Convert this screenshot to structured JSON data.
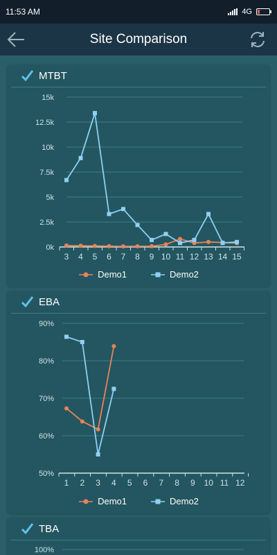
{
  "status": {
    "time": "11:53 AM",
    "network": "4G"
  },
  "appbar": {
    "title": "Site Comparison",
    "back_icon": "arrow-left-icon",
    "refresh_icon": "refresh-icon"
  },
  "colors": {
    "demo1": "#e9835a",
    "demo2": "#8fd0f3",
    "axis": "#cfe3e6",
    "grid": "#3e7f88"
  },
  "legend": {
    "series1": "Demo1",
    "series2": "Demo2"
  },
  "chart_data": [
    {
      "type": "line",
      "title": "MTBT",
      "x": [
        "3",
        "4",
        "5",
        "6",
        "7",
        "8",
        "9",
        "10",
        "11",
        "12",
        "13",
        "14",
        "15"
      ],
      "y_ticks": [
        "0k",
        "2.5k",
        "5k",
        "7.5k",
        "10k",
        "12.5k",
        "15k"
      ],
      "ylim": [
        0,
        15000
      ],
      "series": [
        {
          "name": "Demo1",
          "values": [
            150,
            120,
            100,
            80,
            60,
            70,
            80,
            250,
            800,
            400,
            500,
            450,
            380
          ]
        },
        {
          "name": "Demo2",
          "values": [
            6700,
            8900,
            13400,
            3300,
            3800,
            2200,
            700,
            1300,
            400,
            700,
            3300,
            400,
            500
          ]
        }
      ]
    },
    {
      "type": "line",
      "title": "EBA",
      "x": [
        "1",
        "2",
        "3",
        "4",
        "5",
        "6",
        "7",
        "8",
        "9",
        "10",
        "11",
        "12"
      ],
      "y_ticks": [
        "50%",
        "60%",
        "70%",
        "80%",
        "90%"
      ],
      "ylim": [
        50,
        90
      ],
      "series": [
        {
          "name": "Demo1",
          "values": [
            67.3,
            63.8,
            61.7,
            83.9,
            null,
            null,
            null,
            null,
            null,
            null,
            null,
            null
          ]
        },
        {
          "name": "Demo2",
          "values": [
            86.4,
            85.0,
            55.0,
            72.5,
            null,
            null,
            null,
            null,
            null,
            null,
            null,
            null
          ]
        }
      ]
    },
    {
      "type": "line",
      "title": "TBA",
      "y_ticks": [
        "100%"
      ]
    }
  ]
}
